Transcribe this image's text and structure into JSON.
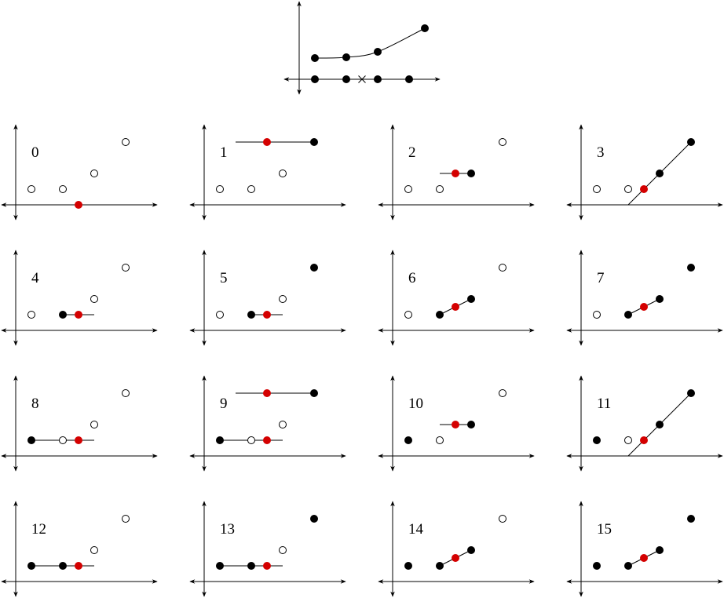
{
  "top_diagram": {
    "name": "piecewise-linear-curve",
    "curve_points": [
      [
        1,
        2.7
      ],
      [
        3,
        2.8
      ],
      [
        5,
        3.5
      ],
      [
        8,
        6.5
      ]
    ],
    "axis_points": [
      1,
      3,
      5,
      7
    ],
    "axis_cross": 4
  },
  "panels": [
    {
      "label": "0",
      "points": [
        {
          "x": 1,
          "y": 1,
          "s": "open"
        },
        {
          "x": 3,
          "y": 1,
          "s": "open"
        },
        {
          "x": 5,
          "y": 2,
          "s": "open"
        },
        {
          "x": 7,
          "y": 4,
          "s": "open"
        },
        {
          "x": 4,
          "y": 0,
          "s": "red"
        }
      ],
      "segments": []
    },
    {
      "label": "1",
      "points": [
        {
          "x": 1,
          "y": 1,
          "s": "open"
        },
        {
          "x": 3,
          "y": 1,
          "s": "open"
        },
        {
          "x": 5,
          "y": 2,
          "s": "open"
        },
        {
          "x": 7,
          "y": 4,
          "s": "filled"
        },
        {
          "x": 4,
          "y": 4,
          "s": "red"
        }
      ],
      "segments": [
        [
          [
            2,
            4
          ],
          [
            7,
            4
          ]
        ]
      ]
    },
    {
      "label": "2",
      "points": [
        {
          "x": 1,
          "y": 1,
          "s": "open"
        },
        {
          "x": 3,
          "y": 1,
          "s": "open"
        },
        {
          "x": 5,
          "y": 2,
          "s": "filled"
        },
        {
          "x": 7,
          "y": 4,
          "s": "open"
        },
        {
          "x": 4,
          "y": 2,
          "s": "red"
        }
      ],
      "segments": [
        [
          [
            3,
            2
          ],
          [
            5,
            2
          ]
        ]
      ]
    },
    {
      "label": "3",
      "points": [
        {
          "x": 1,
          "y": 1,
          "s": "open"
        },
        {
          "x": 3,
          "y": 1,
          "s": "open"
        },
        {
          "x": 5,
          "y": 2,
          "s": "filled"
        },
        {
          "x": 7,
          "y": 4,
          "s": "filled"
        },
        {
          "x": 4,
          "y": 1,
          "s": "red"
        }
      ],
      "segments": [
        [
          [
            3,
            0
          ],
          [
            7,
            4
          ]
        ]
      ]
    },
    {
      "label": "4",
      "points": [
        {
          "x": 1,
          "y": 1,
          "s": "open"
        },
        {
          "x": 3,
          "y": 1,
          "s": "filled"
        },
        {
          "x": 5,
          "y": 2,
          "s": "open"
        },
        {
          "x": 7,
          "y": 4,
          "s": "open"
        },
        {
          "x": 4,
          "y": 1,
          "s": "red"
        }
      ],
      "segments": [
        [
          [
            3,
            1
          ],
          [
            5,
            1
          ]
        ]
      ]
    },
    {
      "label": "5",
      "points": [
        {
          "x": 1,
          "y": 1,
          "s": "open"
        },
        {
          "x": 3,
          "y": 1,
          "s": "filled"
        },
        {
          "x": 5,
          "y": 2,
          "s": "open"
        },
        {
          "x": 7,
          "y": 4,
          "s": "filled"
        },
        {
          "x": 4,
          "y": 1,
          "s": "red"
        }
      ],
      "segments": [
        [
          [
            3,
            1
          ],
          [
            5,
            1
          ]
        ]
      ]
    },
    {
      "label": "6",
      "points": [
        {
          "x": 1,
          "y": 1,
          "s": "open"
        },
        {
          "x": 3,
          "y": 1,
          "s": "filled"
        },
        {
          "x": 5,
          "y": 2,
          "s": "filled"
        },
        {
          "x": 7,
          "y": 4,
          "s": "open"
        },
        {
          "x": 4,
          "y": 1.5,
          "s": "red"
        }
      ],
      "segments": [
        [
          [
            3,
            1
          ],
          [
            5,
            2
          ]
        ]
      ]
    },
    {
      "label": "7",
      "points": [
        {
          "x": 1,
          "y": 1,
          "s": "open"
        },
        {
          "x": 3,
          "y": 1,
          "s": "filled"
        },
        {
          "x": 5,
          "y": 2,
          "s": "filled"
        },
        {
          "x": 7,
          "y": 4,
          "s": "filled"
        },
        {
          "x": 4,
          "y": 1.5,
          "s": "red"
        }
      ],
      "segments": [
        [
          [
            3,
            1
          ],
          [
            5,
            2
          ]
        ]
      ]
    },
    {
      "label": "8",
      "points": [
        {
          "x": 1,
          "y": 1,
          "s": "filled"
        },
        {
          "x": 3,
          "y": 1,
          "s": "open"
        },
        {
          "x": 5,
          "y": 2,
          "s": "open"
        },
        {
          "x": 7,
          "y": 4,
          "s": "open"
        },
        {
          "x": 4,
          "y": 1,
          "s": "red"
        }
      ],
      "segments": [
        [
          [
            1,
            1
          ],
          [
            5,
            1
          ]
        ]
      ]
    },
    {
      "label": "9",
      "points": [
        {
          "x": 1,
          "y": 1,
          "s": "filled"
        },
        {
          "x": 3,
          "y": 1,
          "s": "open"
        },
        {
          "x": 5,
          "y": 2,
          "s": "open"
        },
        {
          "x": 7,
          "y": 4,
          "s": "filled"
        },
        {
          "x": 4,
          "y": 1,
          "s": "red"
        },
        {
          "x": 4,
          "y": 4,
          "s": "red"
        }
      ],
      "segments": [
        [
          [
            1,
            1
          ],
          [
            5,
            1
          ]
        ],
        [
          [
            2,
            4
          ],
          [
            7,
            4
          ]
        ]
      ]
    },
    {
      "label": "10",
      "points": [
        {
          "x": 1,
          "y": 1,
          "s": "filled"
        },
        {
          "x": 3,
          "y": 1,
          "s": "open"
        },
        {
          "x": 5,
          "y": 2,
          "s": "filled"
        },
        {
          "x": 7,
          "y": 4,
          "s": "open"
        },
        {
          "x": 4,
          "y": 2,
          "s": "red"
        }
      ],
      "segments": [
        [
          [
            3,
            2
          ],
          [
            5,
            2
          ]
        ]
      ]
    },
    {
      "label": "11",
      "points": [
        {
          "x": 1,
          "y": 1,
          "s": "filled"
        },
        {
          "x": 3,
          "y": 1,
          "s": "open"
        },
        {
          "x": 5,
          "y": 2,
          "s": "filled"
        },
        {
          "x": 7,
          "y": 4,
          "s": "filled"
        },
        {
          "x": 4,
          "y": 1,
          "s": "red"
        }
      ],
      "segments": [
        [
          [
            3,
            0
          ],
          [
            7,
            4
          ]
        ]
      ]
    },
    {
      "label": "12",
      "points": [
        {
          "x": 1,
          "y": 1,
          "s": "filled"
        },
        {
          "x": 3,
          "y": 1,
          "s": "filled"
        },
        {
          "x": 5,
          "y": 2,
          "s": "open"
        },
        {
          "x": 7,
          "y": 4,
          "s": "open"
        },
        {
          "x": 4,
          "y": 1,
          "s": "red"
        }
      ],
      "segments": [
        [
          [
            1,
            1
          ],
          [
            5,
            1
          ]
        ]
      ]
    },
    {
      "label": "13",
      "points": [
        {
          "x": 1,
          "y": 1,
          "s": "filled"
        },
        {
          "x": 3,
          "y": 1,
          "s": "filled"
        },
        {
          "x": 5,
          "y": 2,
          "s": "open"
        },
        {
          "x": 7,
          "y": 4,
          "s": "filled"
        },
        {
          "x": 4,
          "y": 1,
          "s": "red"
        }
      ],
      "segments": [
        [
          [
            1,
            1
          ],
          [
            5,
            1
          ]
        ]
      ]
    },
    {
      "label": "14",
      "points": [
        {
          "x": 1,
          "y": 1,
          "s": "filled"
        },
        {
          "x": 3,
          "y": 1,
          "s": "filled"
        },
        {
          "x": 5,
          "y": 2,
          "s": "filled"
        },
        {
          "x": 7,
          "y": 4,
          "s": "open"
        },
        {
          "x": 4,
          "y": 1.5,
          "s": "red"
        }
      ],
      "segments": [
        [
          [
            3,
            1
          ],
          [
            5,
            2
          ]
        ]
      ]
    },
    {
      "label": "15",
      "points": [
        {
          "x": 1,
          "y": 1,
          "s": "filled"
        },
        {
          "x": 3,
          "y": 1,
          "s": "filled"
        },
        {
          "x": 5,
          "y": 2,
          "s": "filled"
        },
        {
          "x": 7,
          "y": 4,
          "s": "filled"
        },
        {
          "x": 4,
          "y": 1.5,
          "s": "red"
        }
      ],
      "segments": [
        [
          [
            3,
            1
          ],
          [
            5,
            2
          ]
        ]
      ]
    }
  ],
  "colors": {
    "highlight": "#d40000",
    "ink": "#000000"
  }
}
